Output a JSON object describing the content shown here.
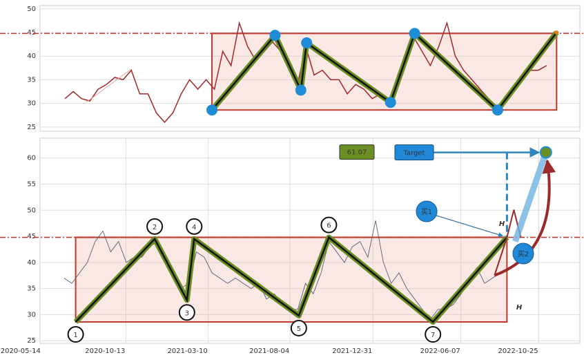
{
  "chart_data": [
    {
      "type": "line",
      "ylim": [
        24.1,
        50.7
      ],
      "yticks": [
        25,
        30,
        35,
        40,
        45,
        50
      ],
      "grid": true,
      "xlim": [
        -3,
        62
      ],
      "series": [
        {
          "color": "#a0282a",
          "values": [
            31,
            32.5,
            31,
            30.5,
            33,
            34,
            35.5,
            35,
            37,
            32,
            32,
            28,
            26,
            28,
            32,
            35,
            33,
            35,
            33,
            41,
            38,
            47,
            42,
            39,
            41,
            43,
            41,
            38,
            34,
            42,
            36,
            37,
            35,
            35,
            32,
            34,
            33,
            31,
            32,
            31,
            33,
            39,
            44,
            41,
            38,
            42,
            47,
            40,
            37,
            35,
            33,
            31,
            29,
            30,
            33,
            35,
            37,
            37,
            38
          ]
        }
      ],
      "zigzag": {
        "color": "#6b8e23",
        "x": [
          17.7,
          25.3,
          28.4,
          29.1,
          39.2,
          42.1,
          52.1,
          59.2
        ],
        "values": [
          28.6,
          44.4,
          32.8,
          42.8,
          30.2,
          44.8,
          28.6,
          45
        ]
      },
      "levels": [
        44.8,
        28.6
      ],
      "level_color": "#c0392b"
    },
    {
      "type": "line",
      "ylim": [
        24.5,
        63.8
      ],
      "yticks": [
        25,
        30,
        35,
        40,
        45,
        50,
        55,
        60
      ],
      "grid": true,
      "xlim": [
        "2020-06-18",
        "2023-02-13"
      ],
      "xticks": [
        "2020-05-14",
        "2020-10-13",
        "2021-03-10",
        "2021-08-04",
        "2021-12-31",
        "2022-06-07",
        "2022-10-25"
      ],
      "series": [
        {
          "color": "#5a5a78",
          "x": [
            "2020-07-31",
            "2020-08-14",
            "2020-08-28",
            "2020-09-11",
            "2020-09-25",
            "2020-10-09",
            "2020-10-23",
            "2020-11-06",
            "2020-11-20",
            "2020-12-04",
            "2020-12-18",
            "2021-01-01",
            "2021-01-15",
            "2021-01-29",
            "2021-02-12",
            "2021-02-26",
            "2021-03-12",
            "2021-03-26",
            "2021-04-09",
            "2021-04-23",
            "2021-05-07",
            "2021-05-21",
            "2021-06-04",
            "2021-06-18",
            "2021-07-02",
            "2021-07-16",
            "2021-07-30",
            "2021-08-13",
            "2021-08-27",
            "2021-09-10",
            "2021-09-24",
            "2021-10-08",
            "2021-10-22",
            "2021-11-05",
            "2021-11-19",
            "2021-12-03",
            "2021-12-17",
            "2021-12-31",
            "2022-01-14",
            "2022-01-28",
            "2022-02-11",
            "2022-02-25",
            "2022-03-11",
            "2022-03-25",
            "2022-04-08",
            "2022-04-22",
            "2022-05-06",
            "2022-05-20",
            "2022-06-03",
            "2022-06-17",
            "2022-07-01",
            "2022-07-15",
            "2022-07-29",
            "2022-08-12",
            "2022-08-26",
            "2022-09-09",
            "2022-09-23"
          ],
          "values": [
            37,
            36,
            38,
            40,
            44,
            46,
            42,
            44,
            40,
            41,
            41,
            43,
            44,
            40,
            38,
            35,
            36,
            42,
            41,
            38,
            37,
            36,
            37,
            36,
            35,
            36,
            33,
            34,
            32,
            31,
            31,
            36,
            34,
            38,
            44,
            42,
            40,
            43,
            44,
            41,
            48,
            40,
            36,
            38,
            35,
            33,
            31,
            29,
            31,
            31,
            32,
            34,
            37,
            39,
            36,
            37,
            38
          ]
        }
      ],
      "zigzag": {
        "color": "#6b8e23",
        "x": [
          "2020-08-21",
          "2021-01-10",
          "2021-03-09",
          "2021-03-22",
          "2021-09-26",
          "2021-11-19",
          "2022-05-25",
          "2022-10-05"
        ],
        "values": [
          28.6,
          44.5,
          32.8,
          44.5,
          29.8,
          44.8,
          28.6,
          44.8
        ],
        "labels": [
          "1",
          "2",
          "3",
          "4",
          "5",
          "6",
          "7"
        ]
      },
      "levels": [
        44.8,
        28.6
      ],
      "level_color": "#c0392b",
      "target": {
        "x": "2022-12-14",
        "value": 61.07,
        "label": "Target"
      },
      "annotations": {
        "buy1": "买1",
        "buy2": "买2",
        "h_upper": "H",
        "h_lower": "H"
      }
    }
  ]
}
